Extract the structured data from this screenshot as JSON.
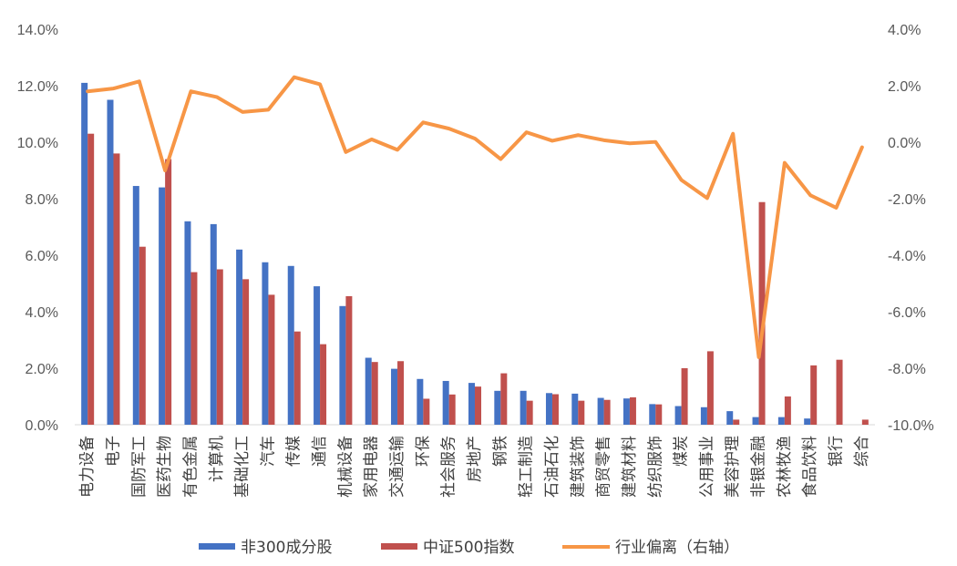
{
  "chart_data": {
    "type": "bar",
    "categories": [
      "电力设备",
      "电子",
      "国防军工",
      "医药生物",
      "有色金属",
      "计算机",
      "基础化工",
      "汽车",
      "传媒",
      "通信",
      "机械设备",
      "家用电器",
      "交通运输",
      "环保",
      "社会服务",
      "房地产",
      "钢铁",
      "轻工制造",
      "石油石化",
      "建筑装饰",
      "商贸零售",
      "建筑材料",
      "纺织服饰",
      "煤炭",
      "公用事业",
      "美容护理",
      "非银金融",
      "农林牧渔",
      "食品饮料",
      "银行",
      "综合"
    ],
    "series": [
      {
        "name": "非300成分股",
        "type": "bar",
        "axis": "left",
        "color": "#4472C4",
        "values": [
          12.1,
          11.5,
          8.45,
          8.4,
          7.2,
          7.1,
          6.2,
          5.75,
          5.62,
          4.9,
          4.2,
          2.37,
          1.98,
          1.62,
          1.55,
          1.48,
          1.2,
          1.2,
          1.12,
          1.1,
          0.95,
          0.93,
          0.73,
          0.66,
          0.62,
          0.48,
          0.27,
          0.27,
          0.22,
          0.0,
          0.0
        ]
      },
      {
        "name": "中证500指数",
        "type": "bar",
        "axis": "left",
        "color": "#C0504D",
        "values": [
          10.3,
          9.6,
          6.3,
          9.4,
          5.4,
          5.5,
          5.15,
          4.6,
          3.3,
          2.85,
          4.55,
          2.22,
          2.25,
          0.92,
          1.07,
          1.35,
          1.82,
          0.85,
          1.08,
          0.85,
          0.88,
          0.97,
          0.72,
          2.0,
          2.6,
          0.18,
          7.88,
          1.0,
          2.1,
          2.3,
          0.18
        ]
      },
      {
        "name": "行业偏离（右轴）",
        "type": "line",
        "axis": "right",
        "color": "#F79646",
        "values": [
          1.8,
          1.9,
          2.15,
          -1.0,
          1.8,
          1.6,
          1.07,
          1.15,
          2.3,
          2.05,
          -0.35,
          0.1,
          -0.27,
          0.7,
          0.48,
          0.13,
          -0.6,
          0.35,
          0.05,
          0.25,
          0.07,
          -0.04,
          0.01,
          -1.34,
          -1.98,
          0.3,
          -7.61,
          -0.73,
          -1.88,
          -2.32,
          -0.18
        ]
      }
    ],
    "y_left": {
      "min": 0,
      "max": 14,
      "step": 2,
      "format": "percent1"
    },
    "y_right": {
      "min": -10,
      "max": 4,
      "step": 2,
      "format": "percent1"
    },
    "legend_position": "bottom",
    "grid": false
  }
}
